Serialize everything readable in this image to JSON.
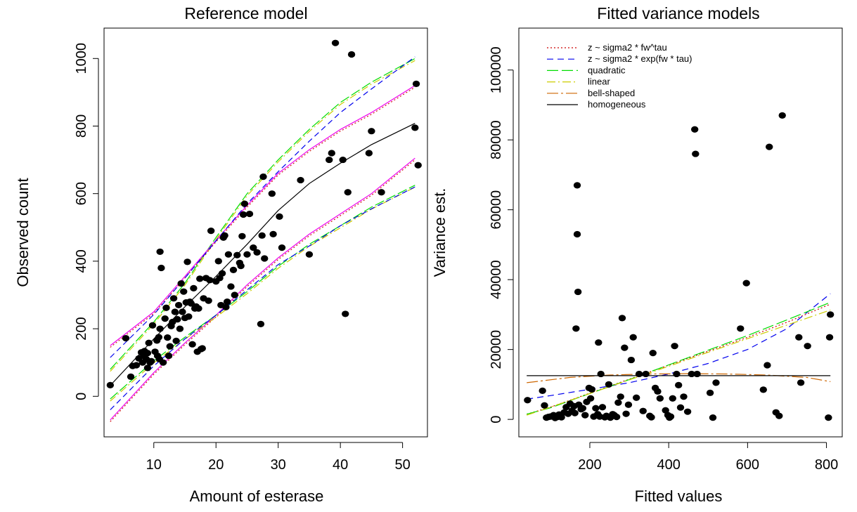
{
  "colors": {
    "power": "#cc0000",
    "exponential": "#0000ee",
    "quadratic": "#00dd00",
    "linear": "#cccc00",
    "bell": "#cd6600",
    "homogeneous": "#000000",
    "magenta": "#ee00ee",
    "points": "#000000"
  },
  "chart_data": [
    {
      "type": "scatter",
      "title": "Reference model",
      "xlabel": "Amount of esterase",
      "ylabel": "Observed count",
      "xlim": [
        2,
        54
      ],
      "ylim": [
        -120,
        1090
      ],
      "xticks": [
        10,
        20,
        30,
        40,
        50
      ],
      "yticks": [
        0,
        200,
        400,
        600,
        800,
        1000
      ],
      "grid": false,
      "points": [
        [
          3,
          33
        ],
        [
          5.5,
          172
        ],
        [
          6.3,
          58
        ],
        [
          6.6,
          90
        ],
        [
          7.2,
          92
        ],
        [
          7.6,
          112
        ],
        [
          8,
          130
        ],
        [
          8.2,
          100
        ],
        [
          8.4,
          120
        ],
        [
          8.5,
          134
        ],
        [
          8.8,
          110
        ],
        [
          9,
          128
        ],
        [
          9,
          84
        ],
        [
          9.2,
          158
        ],
        [
          9.4,
          100
        ],
        [
          9.6,
          104
        ],
        [
          9.8,
          210
        ],
        [
          10.2,
          132
        ],
        [
          10.5,
          165
        ],
        [
          10.6,
          120
        ],
        [
          10.8,
          175
        ],
        [
          10.9,
          110
        ],
        [
          11,
          200
        ],
        [
          11,
          428
        ],
        [
          11.2,
          380
        ],
        [
          11.5,
          100
        ],
        [
          11.8,
          230
        ],
        [
          12,
          262
        ],
        [
          12.2,
          174
        ],
        [
          12.4,
          120
        ],
        [
          12.6,
          148
        ],
        [
          12.8,
          208
        ],
        [
          13,
          220
        ],
        [
          13.2,
          290
        ],
        [
          13.4,
          250
        ],
        [
          13.6,
          164
        ],
        [
          13.8,
          228
        ],
        [
          14,
          270
        ],
        [
          14.2,
          200
        ],
        [
          14.4,
          334
        ],
        [
          14.6,
          250
        ],
        [
          14.8,
          310
        ],
        [
          15,
          232
        ],
        [
          15.2,
          278
        ],
        [
          15.4,
          398
        ],
        [
          15.6,
          236
        ],
        [
          15.8,
          280
        ],
        [
          16,
          275
        ],
        [
          16.2,
          154
        ],
        [
          16.4,
          320
        ],
        [
          16.6,
          260
        ],
        [
          16.8,
          266
        ],
        [
          17,
          132
        ],
        [
          17.2,
          260
        ],
        [
          17.4,
          348
        ],
        [
          17.6,
          140
        ],
        [
          17.8,
          142
        ],
        [
          18,
          290
        ],
        [
          18.4,
          350
        ],
        [
          18.8,
          283
        ],
        [
          19,
          344
        ],
        [
          19.2,
          490
        ],
        [
          20,
          340
        ],
        [
          20.4,
          400
        ],
        [
          20.6,
          350
        ],
        [
          20.8,
          270
        ],
        [
          21,
          364
        ],
        [
          21.2,
          470
        ],
        [
          21.4,
          476
        ],
        [
          21.6,
          264
        ],
        [
          21.8,
          280
        ],
        [
          22,
          420
        ],
        [
          22.4,
          325
        ],
        [
          22.8,
          374
        ],
        [
          23,
          300
        ],
        [
          23.4,
          418
        ],
        [
          23.8,
          395
        ],
        [
          24,
          386
        ],
        [
          24.2,
          474
        ],
        [
          24.4,
          538
        ],
        [
          24.6,
          570
        ],
        [
          25,
          420
        ],
        [
          25.4,
          540
        ],
        [
          26,
          440
        ],
        [
          26.6,
          426
        ],
        [
          27.2,
          214
        ],
        [
          27.4,
          476
        ],
        [
          27.6,
          650
        ],
        [
          27.8,
          408
        ],
        [
          29,
          600
        ],
        [
          29.2,
          480
        ],
        [
          30.2,
          532
        ],
        [
          30.6,
          440
        ],
        [
          33.6,
          640
        ],
        [
          35,
          420
        ],
        [
          38.2,
          700
        ],
        [
          38.6,
          720
        ],
        [
          39.2,
          1046
        ],
        [
          40.4,
          700
        ],
        [
          40.8,
          244
        ],
        [
          41.2,
          604
        ],
        [
          41.8,
          1012
        ],
        [
          44.6,
          720
        ],
        [
          45,
          785
        ],
        [
          46.6,
          604
        ],
        [
          52,
          795
        ],
        [
          52.2,
          925
        ],
        [
          52.5,
          684
        ]
      ],
      "series": [
        {
          "key": "homogeneous",
          "x": [
            3,
            10,
            15,
            20,
            25,
            30,
            35,
            40,
            45,
            52
          ],
          "y": [
            32,
            170,
            265,
            355,
            450,
            550,
            630,
            690,
            745,
            808
          ]
        },
        {
          "key": "upper_green",
          "x": [
            3,
            10,
            15,
            20,
            25,
            30,
            35,
            40,
            45,
            52
          ],
          "y": [
            80,
            220,
            335,
            470,
            600,
            700,
            790,
            870,
            930,
            1000
          ]
        },
        {
          "key": "upper_magenta",
          "x": [
            3,
            10,
            15,
            20,
            25,
            30,
            35,
            40,
            45,
            52
          ],
          "y": [
            150,
            250,
            355,
            462,
            565,
            660,
            730,
            790,
            840,
            920
          ]
        },
        {
          "key": "lower_magenta",
          "x": [
            3,
            10,
            15,
            20,
            25,
            30,
            35,
            40,
            45,
            52
          ],
          "y": [
            -70,
            70,
            158,
            240,
            330,
            410,
            480,
            540,
            600,
            705
          ]
        },
        {
          "key": "lower_green",
          "x": [
            3,
            10,
            15,
            20,
            25,
            30,
            35,
            40,
            45,
            52
          ],
          "y": [
            -8,
            105,
            175,
            240,
            310,
            385,
            450,
            505,
            560,
            625
          ]
        },
        {
          "key": "upper_blue",
          "x": [
            3,
            10,
            15,
            20,
            25,
            30,
            35,
            40,
            45,
            52
          ],
          "y": [
            115,
            242,
            350,
            460,
            570,
            665,
            755,
            840,
            910,
            1005
          ]
        },
        {
          "key": "lower_blue",
          "x": [
            3,
            10,
            15,
            20,
            25,
            30,
            35,
            40,
            45,
            52
          ],
          "y": [
            -40,
            90,
            170,
            240,
            315,
            390,
            445,
            505,
            555,
            620
          ]
        }
      ]
    },
    {
      "type": "scatter",
      "title": "Fitted variance models",
      "xlabel": "Fitted values",
      "ylabel": "Variance est.",
      "xlim": [
        20,
        840
      ],
      "ylim": [
        -5000,
        112000
      ],
      "xticks": [
        200,
        400,
        600,
        800
      ],
      "yticks": [
        0,
        20000,
        40000,
        60000,
        80000,
        100000
      ],
      "grid": false,
      "legend_position": "top-left",
      "legend": [
        {
          "label": "z ~ sigma2 * fw^tau",
          "color_key": "power",
          "dash": "2,3"
        },
        {
          "label": "z ~ sigma2 * exp(fw * tau)",
          "color_key": "exponential",
          "dash": "9,6"
        },
        {
          "label": "quadratic",
          "color_key": "quadratic",
          "dash": "16,5"
        },
        {
          "label": "linear",
          "color_key": "linear",
          "dash": "12,4,2,4"
        },
        {
          "label": "bell-shaped",
          "color_key": "bell",
          "dash": "16,4,3,4"
        },
        {
          "label": "homogeneous",
          "color_key": "homogeneous",
          "dash": ""
        }
      ],
      "points": [
        [
          42,
          5500
        ],
        [
          80,
          8200
        ],
        [
          85,
          4000
        ],
        [
          90,
          500
        ],
        [
          95,
          700
        ],
        [
          100,
          800
        ],
        [
          108,
          1200
        ],
        [
          112,
          400
        ],
        [
          118,
          700
        ],
        [
          122,
          1400
        ],
        [
          128,
          600
        ],
        [
          135,
          2000
        ],
        [
          140,
          3500
        ],
        [
          145,
          1600
        ],
        [
          150,
          4500
        ],
        [
          155,
          2500
        ],
        [
          160,
          3800
        ],
        [
          162,
          1800
        ],
        [
          165,
          26000
        ],
        [
          168,
          67000
        ],
        [
          168,
          53000
        ],
        [
          170,
          36500
        ],
        [
          172,
          4200
        ],
        [
          178,
          2900
        ],
        [
          182,
          3200
        ],
        [
          188,
          1200
        ],
        [
          192,
          5000
        ],
        [
          198,
          9000
        ],
        [
          202,
          6000
        ],
        [
          205,
          8600
        ],
        [
          210,
          800
        ],
        [
          215,
          3200
        ],
        [
          220,
          1500
        ],
        [
          222,
          22000
        ],
        [
          225,
          800
        ],
        [
          228,
          13000
        ],
        [
          232,
          3500
        ],
        [
          238,
          600
        ],
        [
          242,
          1000
        ],
        [
          248,
          10000
        ],
        [
          252,
          500
        ],
        [
          258,
          1500
        ],
        [
          262,
          1200
        ],
        [
          268,
          700
        ],
        [
          272,
          4800
        ],
        [
          278,
          6500
        ],
        [
          282,
          29000
        ],
        [
          288,
          20500
        ],
        [
          292,
          1600
        ],
        [
          298,
          4200
        ],
        [
          305,
          17000
        ],
        [
          310,
          23500
        ],
        [
          318,
          6200
        ],
        [
          325,
          13000
        ],
        [
          335,
          2400
        ],
        [
          342,
          13000
        ],
        [
          352,
          1000
        ],
        [
          356,
          600
        ],
        [
          360,
          19000
        ],
        [
          366,
          9000
        ],
        [
          372,
          8000
        ],
        [
          378,
          6000
        ],
        [
          392,
          2600
        ],
        [
          398,
          1200
        ],
        [
          402,
          500
        ],
        [
          405,
          800
        ],
        [
          410,
          6000
        ],
        [
          415,
          21000
        ],
        [
          420,
          13000
        ],
        [
          425,
          9800
        ],
        [
          430,
          3400
        ],
        [
          438,
          6500
        ],
        [
          448,
          2200
        ],
        [
          458,
          13000
        ],
        [
          466,
          83000
        ],
        [
          468,
          76000
        ],
        [
          472,
          13000
        ],
        [
          505,
          7600
        ],
        [
          512,
          500
        ],
        [
          520,
          10500
        ],
        [
          582,
          26000
        ],
        [
          597,
          39000
        ],
        [
          640,
          8500
        ],
        [
          650,
          15500
        ],
        [
          655,
          78000
        ],
        [
          672,
          2000
        ],
        [
          680,
          1000
        ],
        [
          688,
          87000
        ],
        [
          730,
          23500
        ],
        [
          735,
          10500
        ],
        [
          752,
          21000
        ],
        [
          805,
          500
        ],
        [
          808,
          23500
        ],
        [
          810,
          30000
        ]
      ],
      "series": [
        {
          "key": "power",
          "x": [
            40,
            100,
            200,
            300,
            400,
            500,
            600,
            700,
            810
          ],
          "y": [
            1500,
            3500,
            7500,
            11500,
            15500,
            19500,
            23500,
            27800,
            33000
          ]
        },
        {
          "key": "exponential",
          "x": [
            40,
            100,
            200,
            300,
            400,
            500,
            600,
            700,
            810
          ],
          "y": [
            5800,
            6800,
            8600,
            10500,
            13000,
            16000,
            20000,
            26000,
            36000
          ]
        },
        {
          "key": "quadratic",
          "x": [
            40,
            100,
            200,
            300,
            400,
            500,
            600,
            700,
            810
          ],
          "y": [
            1500,
            3300,
            7400,
            11400,
            15600,
            19800,
            24000,
            28500,
            33500
          ]
        },
        {
          "key": "linear",
          "x": [
            40,
            100,
            200,
            300,
            400,
            500,
            600,
            700,
            810
          ],
          "y": [
            1200,
            3500,
            7400,
            11300,
            15200,
            19200,
            23100,
            27000,
            31300
          ]
        },
        {
          "key": "bell",
          "x": [
            40,
            150,
            250,
            350,
            450,
            550,
            650,
            750,
            810
          ],
          "y": [
            10500,
            12000,
            12700,
            13000,
            13100,
            13000,
            12700,
            12000,
            10800
          ]
        },
        {
          "key": "homogeneous",
          "x": [
            40,
            810
          ],
          "y": [
            12500,
            12500
          ]
        }
      ]
    }
  ]
}
